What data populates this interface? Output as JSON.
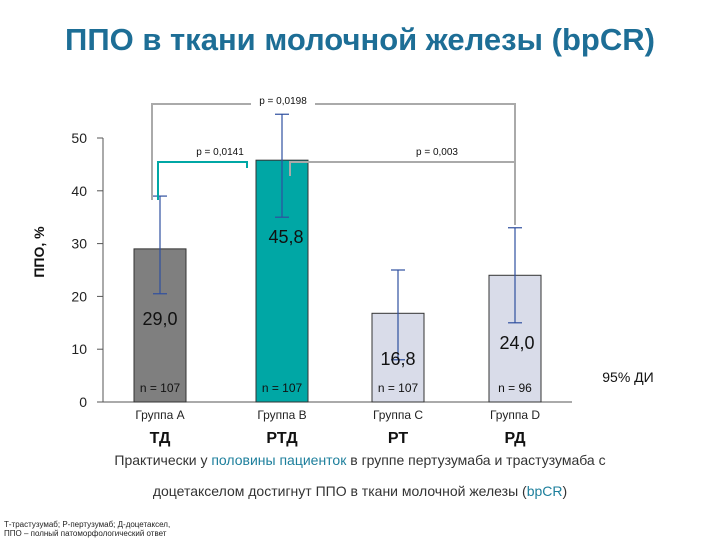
{
  "title": "ППО в ткани молочной железы (bpCR)",
  "chart_data": {
    "type": "bar",
    "ylabel": "ППО, %",
    "ylim": [
      0,
      50
    ],
    "yticks": [
      "0",
      "10",
      "20",
      "30",
      "40",
      "50"
    ],
    "categories": [
      "Группа А",
      "Группа В",
      "Группа С",
      "Группа D"
    ],
    "regimens": [
      "ТД",
      "РТД",
      "РТ",
      "РД"
    ],
    "values": [
      29.0,
      45.8,
      16.8,
      24.0
    ],
    "value_labels": [
      "29,0",
      "45,8",
      "16,8",
      "24,0"
    ],
    "ci_low": [
      20.5,
      35,
      8,
      15
    ],
    "ci_high": [
      39,
      54.5,
      25,
      33
    ],
    "n_labels": [
      "n = 107",
      "n = 107",
      "n = 107",
      "n = 96"
    ],
    "bar_colors": [
      "#7f7f7f",
      "#00a7a5",
      "#d9dce9",
      "#d9dce9"
    ],
    "ci_legend": "95% ДИ",
    "comparisons": [
      {
        "label": "p = 0,0198",
        "from": 0,
        "to": 3,
        "color": "#aaaaaa"
      },
      {
        "label": "p = 0,0141",
        "from": 0,
        "to": 1,
        "color": "#00a7a5"
      },
      {
        "label": "p = 0,003",
        "from": 1,
        "to": 3,
        "color": "#aaaaaa"
      }
    ]
  },
  "caption": {
    "line1_pre": "Практически у ",
    "line1_hl": "половины пациенток",
    "line1_post": " в группе пертузумаба и трастузумаба с",
    "line2_pre": "доцетакселом достигнут ППО в ткани молочной железы (",
    "line2_hl": "bpCR",
    "line2_post": ")"
  },
  "footnote": {
    "line1": "Т-трастузумаб; Р-пертузумаб; Д-доцетаксел,",
    "line2": "ППО – полный патоморфологический ответ"
  }
}
